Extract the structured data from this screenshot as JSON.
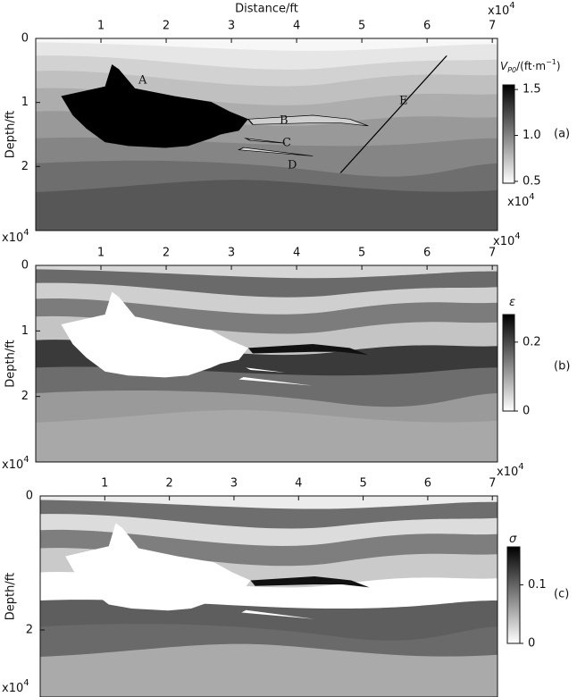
{
  "chart_data": [
    {
      "type": "image",
      "panel_label": "(a)",
      "x_label": "Distance/ft",
      "y_label": "Depth/ft",
      "x_multiplier": {
        "base": "x10",
        "exponent": "4"
      },
      "y_multiplier": {
        "base": "x10",
        "exponent": "4"
      },
      "xlim": [
        0,
        7.08
      ],
      "xticks": [
        1,
        2,
        3,
        4,
        5,
        6,
        7
      ],
      "ylim": [
        0,
        3
      ],
      "yticks": [
        0,
        1,
        2
      ],
      "colorbar": {
        "label": [
          "V",
          "P0",
          "/(ft·m",
          "−1",
          ")"
        ],
        "clim": [
          0.48,
          1.55
        ],
        "ticks": [
          0.5,
          {
            "value": 1,
            "label": "1.0"
          },
          1.5
        ],
        "multiplier": {
          "base": "x10",
          "exponent": "4"
        }
      },
      "annotations": [
        "A",
        "B",
        "C",
        "D",
        "E"
      ]
    },
    {
      "type": "image",
      "panel_label": "(b)",
      "y_label": "Depth/ft",
      "x_multiplier": {
        "base": "x10",
        "exponent": "4"
      },
      "y_multiplier": {
        "base": "x10",
        "exponent": "4"
      },
      "xlim": [
        0,
        7.08
      ],
      "xticks": [
        1,
        2,
        3,
        4,
        5,
        6,
        7
      ],
      "ylim": [
        0,
        3
      ],
      "yticks": [
        0,
        1,
        2
      ],
      "colorbar": {
        "label": [
          "ε"
        ],
        "clim": [
          0,
          0.28
        ],
        "ticks": [
          0,
          0.2
        ]
      }
    },
    {
      "type": "image",
      "panel_label": "(c)",
      "y_label": "Depth/ft",
      "x_multiplier": {
        "base": "x10",
        "exponent": "4"
      },
      "y_multiplier": {
        "base": "x10",
        "exponent": "4"
      },
      "xlim": [
        0,
        7.08
      ],
      "xticks": [
        1,
        2,
        3,
        4,
        5,
        6,
        7
      ],
      "ylim": [
        0,
        3
      ],
      "yticks": [
        0,
        2
      ],
      "colorbar": {
        "label": [
          "σ"
        ],
        "clim": [
          0,
          0.165
        ],
        "ticks": [
          0,
          0.1
        ]
      }
    }
  ]
}
